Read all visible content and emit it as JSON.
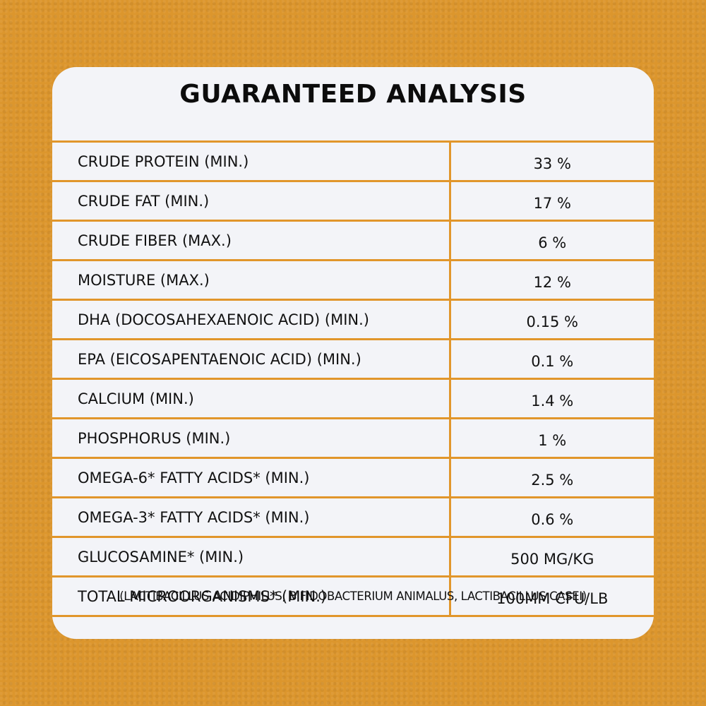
{
  "title": "GUARANTEED ANALYSIS",
  "rows": [
    {
      "name": "CRUDE PROTEIN (MIN.)",
      "value": "33 %"
    },
    {
      "name": "CRUDE FAT (MIN.)",
      "value": "17 %"
    },
    {
      "name": "CRUDE FIBER (MAX.)",
      "value": "6 %"
    },
    {
      "name": "MOISTURE (MAX.)",
      "value": "12 %"
    },
    {
      "name": "DHA (DOCOSAHEXAENOIC ACID) (MIN.)",
      "value": "0.15 %"
    },
    {
      "name": "EPA (EICOSAPENTAENOIC ACID) (MIN.)",
      "value": "0.1 %"
    },
    {
      "name": "CALCIUM (MIN.)",
      "value": "1.4 %"
    },
    {
      "name": "PHOSPHORUS (MIN.)",
      "value": "1 %"
    },
    {
      "name": "OMEGA-6* FATTY ACIDS* (MIN.)",
      "value": "2.5 %"
    },
    {
      "name": "OMEGA-3* FATTY ACIDS* (MIN.)",
      "value": "0.6 %"
    },
    {
      "name": "GLUCOSAMINE* (MIN.)",
      "value": "500 MG/KG"
    },
    {
      "name": "TOTAL MICROORGANISMS* (MIN.)",
      "value": "100MM CFU/LB"
    }
  ],
  "footnote": "(LACTIBACILLUS ACIDIPHILUS, BIFIDOBACTERIUM ANIMALUS, LACTIBACILLUS CASEI)",
  "colors": {
    "background": "#dc962d",
    "card": "#f3f4f8",
    "rule": "#e1962b",
    "text": "#111111"
  }
}
